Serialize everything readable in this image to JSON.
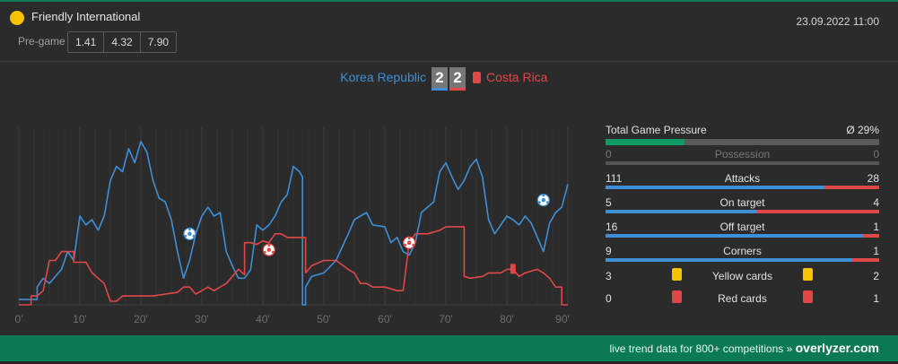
{
  "match": {
    "competition": "Friendly International",
    "datetime": "23.09.2022 11:00",
    "pregame_label": "Pre-game",
    "odds": [
      "1.41",
      "4.32",
      "7.90"
    ],
    "home_team": "Korea Republic",
    "away_team": "Costa Rica",
    "home_score": "2",
    "away_score": "2"
  },
  "colors": {
    "home": "#3f8fd6",
    "away": "#e04848",
    "brand": "#0a7a55",
    "yellow_card": "#f5c400"
  },
  "icons": {
    "competition": "yellow-circle-icon",
    "goal": "soccer-ball-icon",
    "card": "card-icon"
  },
  "stats": {
    "pressure": {
      "label": "Total Game Pressure",
      "value": "Ø 29%",
      "fraction": 0.29
    },
    "rows": [
      {
        "key": "possession",
        "label": "Possession",
        "home": "0",
        "away": "0",
        "dim": true
      },
      {
        "key": "attacks",
        "label": "Attacks",
        "home": "111",
        "away": "28"
      },
      {
        "key": "on_target",
        "label": "On target",
        "home": "5",
        "away": "4"
      },
      {
        "key": "off_target",
        "label": "Off target",
        "home": "16",
        "away": "1"
      },
      {
        "key": "corners",
        "label": "Corners",
        "home": "9",
        "away": "1"
      }
    ],
    "cards": [
      {
        "key": "yellow",
        "label": "Yellow cards",
        "home": "3",
        "away": "2",
        "color": "#f5c400"
      },
      {
        "key": "red",
        "label": "Red cards",
        "home": "0",
        "away": "1",
        "color": "#e04848"
      }
    ]
  },
  "footer": {
    "text": "live trend data for 800+ competitions »",
    "brand": "overlyzer.com"
  },
  "chart_data": {
    "type": "line",
    "x_ticks": [
      "0'",
      "10'",
      "20'",
      "30'",
      "40'",
      "50'",
      "60'",
      "70'",
      "80'",
      "90'"
    ],
    "xlim": [
      0,
      90
    ],
    "ylim": [
      0,
      100
    ],
    "grid": true,
    "series": [
      {
        "color": "#3f8fd6",
        "points": [
          [
            0,
            3
          ],
          [
            3,
            3
          ],
          [
            3,
            10
          ],
          [
            4,
            15
          ],
          [
            5,
            12
          ],
          [
            7,
            20
          ],
          [
            8,
            30
          ],
          [
            9,
            25
          ],
          [
            10,
            50
          ],
          [
            11,
            45
          ],
          [
            12,
            48
          ],
          [
            13,
            42
          ],
          [
            14,
            50
          ],
          [
            15,
            70
          ],
          [
            16,
            78
          ],
          [
            17,
            75
          ],
          [
            18,
            88
          ],
          [
            19,
            80
          ],
          [
            20,
            92
          ],
          [
            21,
            86
          ],
          [
            22,
            70
          ],
          [
            23,
            60
          ],
          [
            24,
            58
          ],
          [
            25,
            48
          ],
          [
            26,
            30
          ],
          [
            27,
            15
          ],
          [
            28,
            25
          ],
          [
            29,
            40
          ],
          [
            30,
            50
          ],
          [
            31,
            55
          ],
          [
            32,
            50
          ],
          [
            33,
            52
          ],
          [
            34,
            30
          ],
          [
            35,
            22
          ],
          [
            36,
            15
          ],
          [
            37,
            15
          ],
          [
            38,
            20
          ],
          [
            39,
            45
          ],
          [
            40,
            42
          ],
          [
            41,
            45
          ],
          [
            42,
            50
          ],
          [
            43,
            58
          ],
          [
            44,
            62
          ],
          [
            45,
            78
          ],
          [
            46,
            75
          ],
          [
            46.5,
            72
          ],
          [
            46.5,
            0
          ],
          [
            47,
            0
          ],
          [
            47,
            10
          ],
          [
            48,
            16
          ],
          [
            50,
            18
          ],
          [
            52,
            25
          ],
          [
            54,
            40
          ],
          [
            55,
            48
          ],
          [
            57,
            52
          ],
          [
            58,
            45
          ],
          [
            60,
            44
          ],
          [
            61,
            35
          ],
          [
            62,
            38
          ],
          [
            63,
            30
          ],
          [
            64,
            28
          ],
          [
            65,
            35
          ],
          [
            66,
            52
          ],
          [
            67,
            55
          ],
          [
            68,
            58
          ],
          [
            69,
            75
          ],
          [
            70,
            80
          ],
          [
            71,
            72
          ],
          [
            72,
            65
          ],
          [
            73,
            70
          ],
          [
            74,
            78
          ],
          [
            75,
            82
          ],
          [
            76,
            72
          ],
          [
            77,
            48
          ],
          [
            78,
            40
          ],
          [
            79,
            45
          ],
          [
            80,
            50
          ],
          [
            81,
            48
          ],
          [
            82,
            45
          ],
          [
            83,
            50
          ],
          [
            84,
            46
          ],
          [
            85,
            38
          ],
          [
            86,
            30
          ],
          [
            87,
            46
          ],
          [
            88,
            52
          ],
          [
            89,
            55
          ],
          [
            90,
            68
          ]
        ]
      },
      {
        "color": "#e04848",
        "points": [
          [
            0,
            0
          ],
          [
            2,
            0
          ],
          [
            2,
            5
          ],
          [
            3,
            5
          ],
          [
            4,
            8
          ],
          [
            5,
            25
          ],
          [
            6,
            25
          ],
          [
            7,
            30
          ],
          [
            9,
            30
          ],
          [
            9,
            24
          ],
          [
            11,
            24
          ],
          [
            12,
            18
          ],
          [
            14,
            12
          ],
          [
            15,
            2
          ],
          [
            16,
            2
          ],
          [
            17,
            5
          ],
          [
            20,
            5
          ],
          [
            22,
            5
          ],
          [
            24,
            6
          ],
          [
            26,
            7
          ],
          [
            27,
            10
          ],
          [
            28,
            10
          ],
          [
            29,
            6
          ],
          [
            31,
            10
          ],
          [
            32,
            8
          ],
          [
            34,
            12
          ],
          [
            35,
            16
          ],
          [
            36,
            20
          ],
          [
            37,
            17
          ],
          [
            37,
            35
          ],
          [
            38,
            35
          ],
          [
            39,
            34
          ],
          [
            40,
            36
          ],
          [
            41,
            35
          ],
          [
            42,
            40
          ],
          [
            43,
            40
          ],
          [
            44,
            38
          ],
          [
            45,
            38
          ],
          [
            46,
            38
          ],
          [
            47,
            38
          ],
          [
            47,
            18
          ],
          [
            48,
            22
          ],
          [
            50,
            25
          ],
          [
            52,
            25
          ],
          [
            54,
            20
          ],
          [
            55,
            18
          ],
          [
            56,
            12
          ],
          [
            57,
            12
          ],
          [
            58,
            10
          ],
          [
            60,
            10
          ],
          [
            62,
            8
          ],
          [
            63,
            8
          ],
          [
            64,
            35
          ],
          [
            65,
            40
          ],
          [
            67,
            40
          ],
          [
            69,
            42
          ],
          [
            70,
            44
          ],
          [
            71,
            44
          ],
          [
            73,
            44
          ],
          [
            73,
            16
          ],
          [
            74,
            15
          ],
          [
            76,
            16
          ],
          [
            77,
            18
          ],
          [
            79,
            18
          ],
          [
            80,
            20
          ],
          [
            81,
            20
          ],
          [
            82,
            16
          ],
          [
            83,
            18
          ],
          [
            85,
            20
          ],
          [
            86,
            18
          ],
          [
            87,
            15
          ],
          [
            88,
            10
          ],
          [
            89,
            10
          ],
          [
            89,
            0
          ],
          [
            90,
            0
          ]
        ]
      }
    ],
    "events": [
      {
        "team": "home",
        "type": "goal",
        "minute": 28,
        "level": 40
      },
      {
        "team": "away",
        "type": "goal",
        "minute": 41,
        "level": 31
      },
      {
        "team": "away",
        "type": "goal",
        "minute": 64,
        "level": 35
      },
      {
        "team": "home",
        "type": "goal",
        "minute": 86,
        "level": 59
      },
      {
        "team": "away",
        "type": "red-card",
        "minute": 81,
        "level": 20
      }
    ]
  }
}
